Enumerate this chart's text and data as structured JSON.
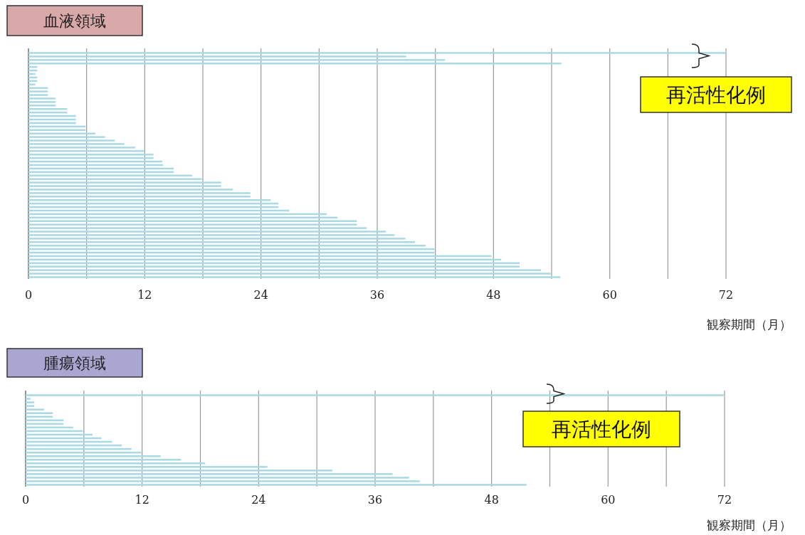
{
  "chart_data": [
    {
      "type": "bar",
      "orientation": "horizontal",
      "title": "血液領域",
      "xlabel": "観察期間（月）",
      "annotations": [
        "再活性化例"
      ],
      "categories": [
        null,
        null,
        null,
        null,
        null,
        null,
        null,
        null,
        null,
        null,
        null,
        null,
        null,
        null,
        null,
        null,
        null,
        null,
        null,
        null,
        null,
        null,
        null,
        null,
        null,
        null,
        null,
        null,
        null,
        null,
        null,
        null,
        null,
        null,
        null,
        null,
        null,
        null,
        null,
        null,
        null,
        null,
        null,
        null,
        null,
        null,
        null,
        null,
        null,
        null,
        null,
        null,
        null,
        null,
        null,
        null,
        null,
        null,
        null,
        null,
        null,
        null,
        null,
        null,
        null
      ],
      "values": [
        72,
        39,
        43,
        55,
        0.9,
        0.9,
        0.7,
        0.9,
        0.9,
        0.7,
        2,
        2,
        2,
        2.8,
        2.8,
        2.8,
        4,
        4,
        4.9,
        4.9,
        4.9,
        5.9,
        5.9,
        6.9,
        7.9,
        8.9,
        9.9,
        11,
        12,
        12.9,
        12.9,
        13.8,
        13.9,
        15,
        15,
        16.9,
        17.9,
        19.9,
        19.9,
        21.1,
        22.9,
        22.9,
        25,
        25.8,
        25.8,
        26.9,
        30.8,
        31.9,
        33.9,
        33.9,
        34.9,
        36.9,
        37.8,
        38.9,
        39.9,
        41,
        41.9,
        41.9,
        47.8,
        48.8,
        50.7,
        50.7,
        52.9,
        53.9,
        54.9
      ],
      "color": "#a9d9e2",
      "xlim": [
        0,
        72
      ],
      "xticks": [
        0,
        {
          "value": 6,
          "label": null
        },
        12,
        {
          "value": 18,
          "label": null
        },
        24,
        {
          "value": 30,
          "label": null
        },
        36,
        {
          "value": 42,
          "label": null
        },
        48,
        {
          "value": 54,
          "label": null
        },
        60,
        {
          "value": 66,
          "label": null
        },
        72
      ],
      "grid": "x"
    },
    {
      "type": "bar",
      "orientation": "horizontal",
      "title": "腫瘍領域",
      "xlabel": "観察期間（月）",
      "annotations": [
        "再活性化例"
      ],
      "categories": [
        null,
        null,
        null,
        null,
        null,
        null,
        null,
        null,
        null,
        null,
        null,
        null,
        null,
        null,
        null,
        null,
        null,
        null,
        null,
        null,
        null,
        null,
        null,
        null,
        null,
        null
      ],
      "values": [
        72,
        0.5,
        0.9,
        0.9,
        1.9,
        2.8,
        2.8,
        3.9,
        3.9,
        4.9,
        5.9,
        6.9,
        7.8,
        8.9,
        9.9,
        10.9,
        11.9,
        13.9,
        16,
        18.5,
        24.9,
        31.6,
        37.8,
        39.5,
        40.6,
        51.6
      ],
      "color": "#a9d9e2",
      "xlim": [
        0,
        72
      ],
      "xticks": [
        0,
        {
          "value": 6,
          "label": null
        },
        12,
        {
          "value": 18,
          "label": null
        },
        24,
        {
          "value": 30,
          "label": null
        },
        36,
        {
          "value": 42,
          "label": null
        },
        48,
        {
          "value": 54,
          "label": null
        },
        60,
        {
          "value": 66,
          "label": null
        },
        72
      ],
      "grid": "x"
    }
  ]
}
